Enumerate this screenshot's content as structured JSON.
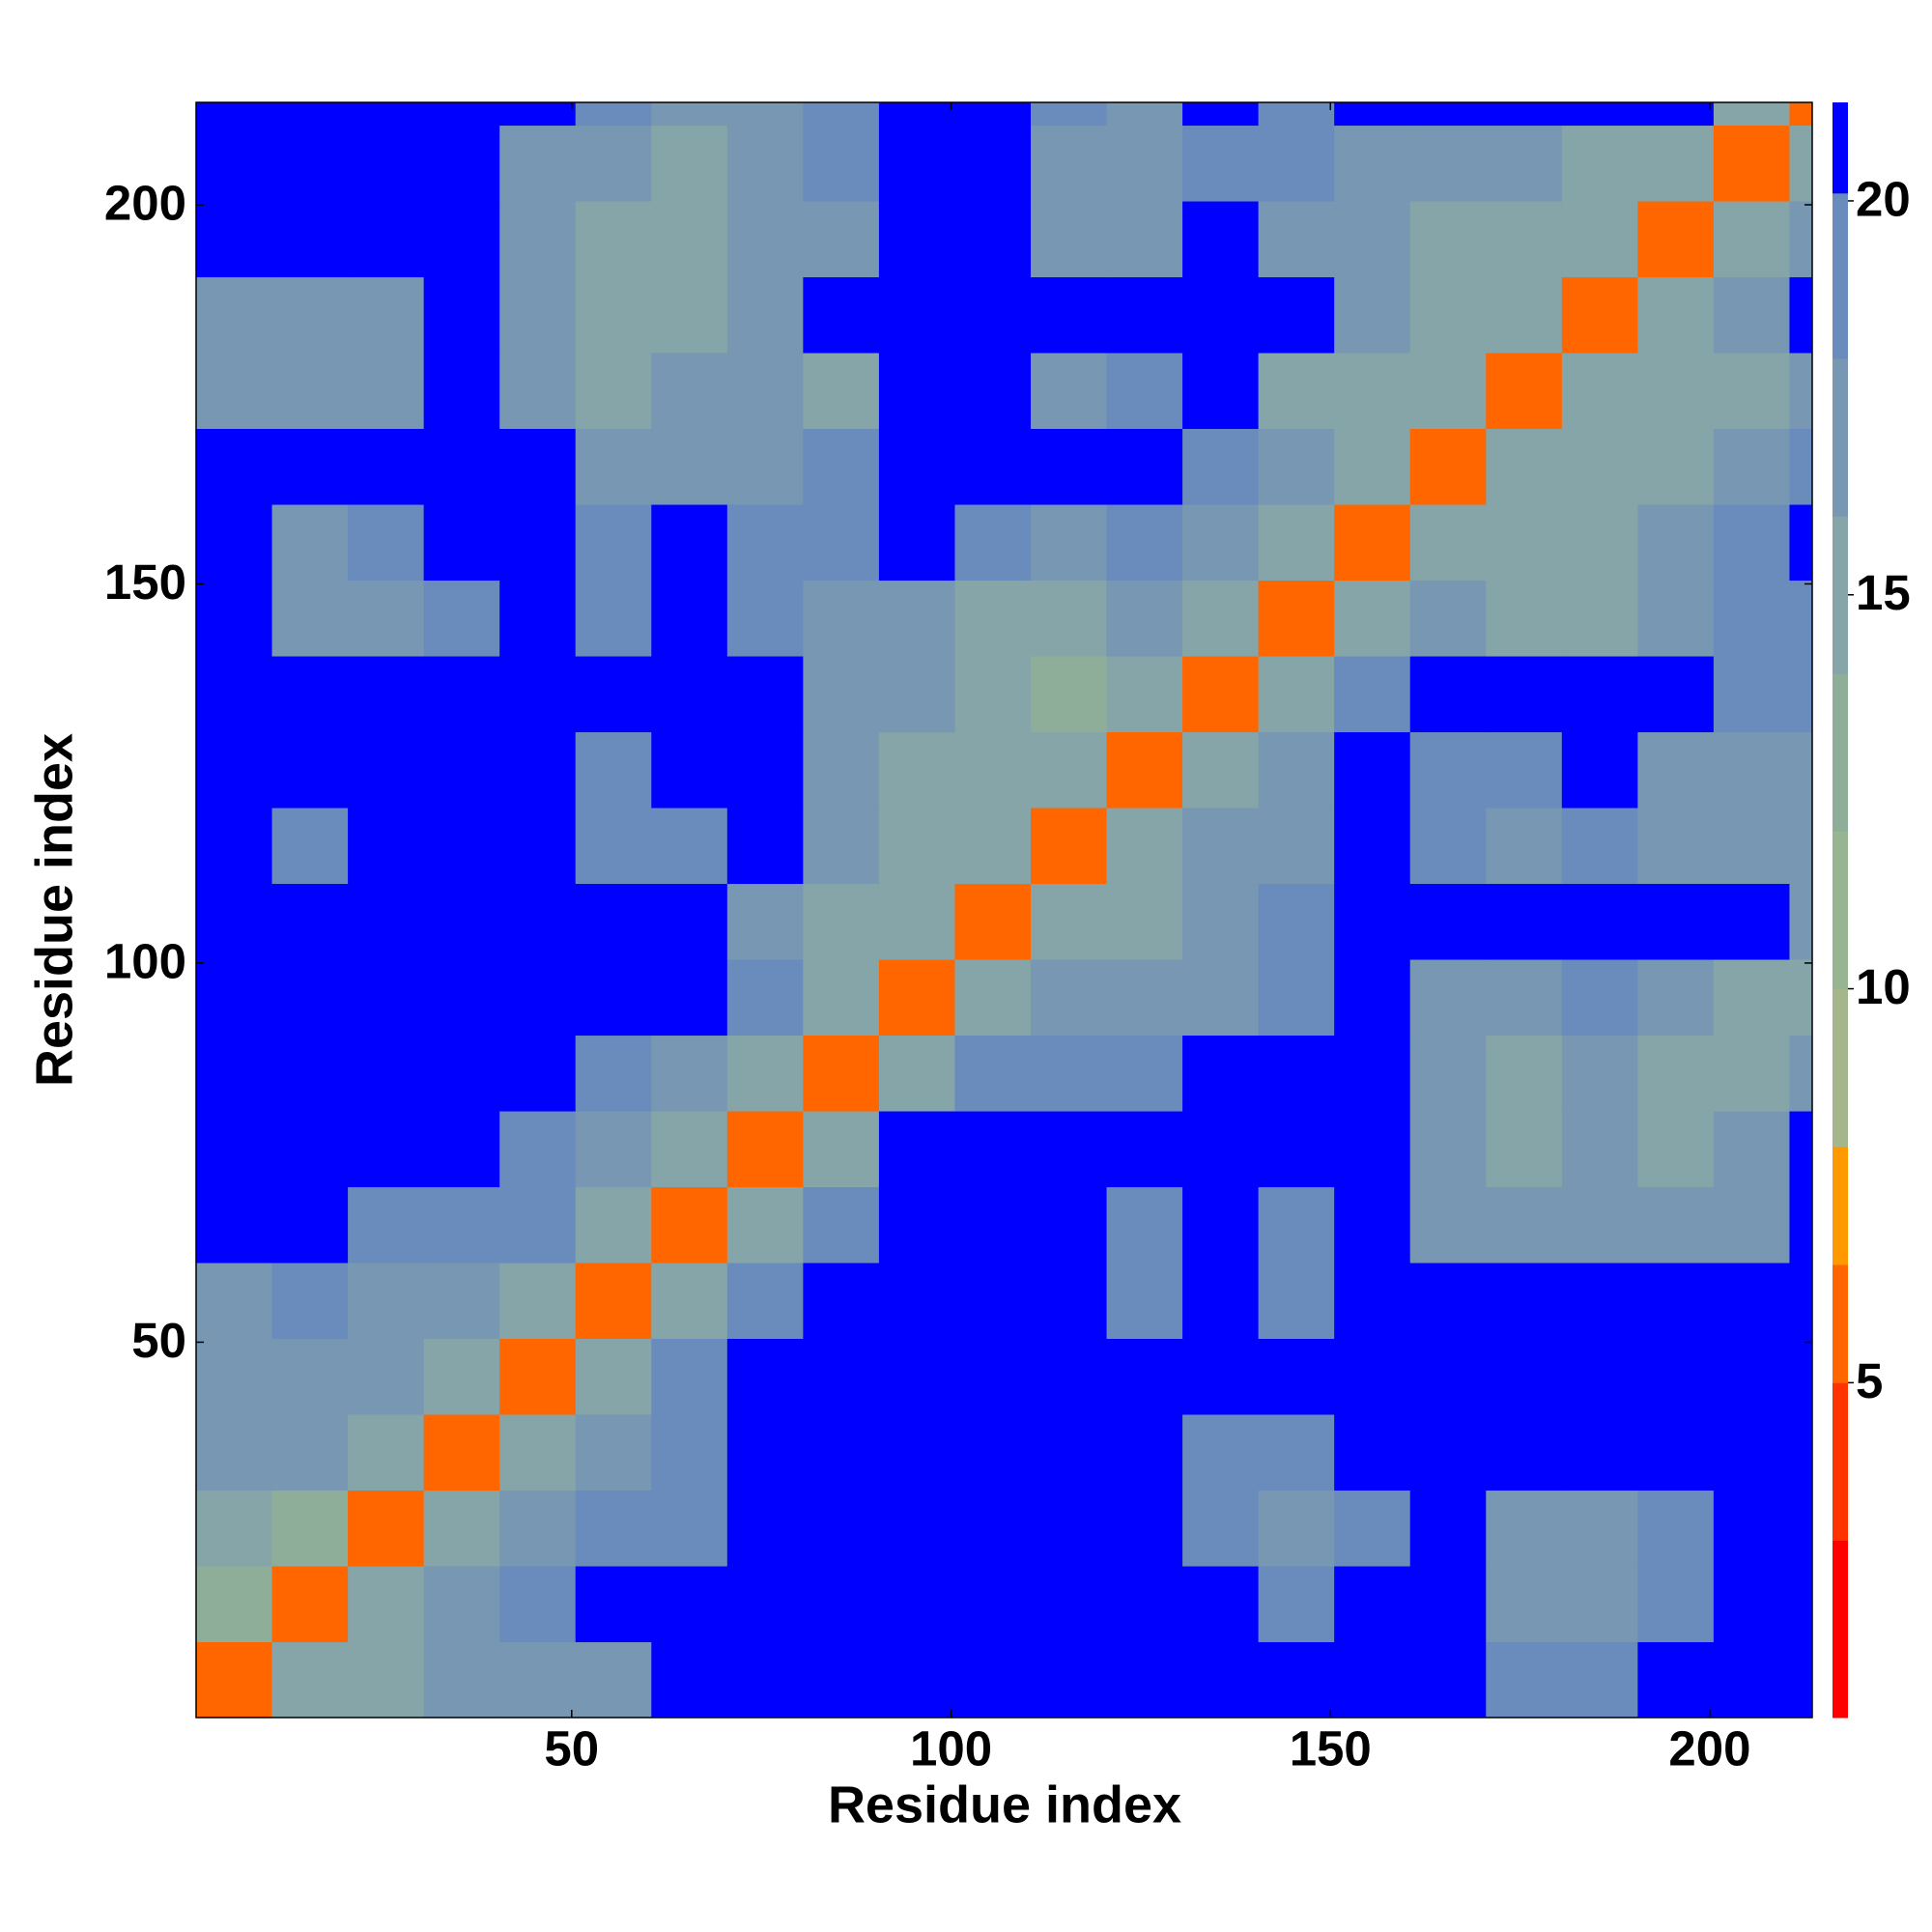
{
  "chart_data": {
    "type": "heatmap",
    "xlabel": "Residue index",
    "ylabel": "Residue index",
    "x_edges": [
      0.5,
      10.5,
      20.5,
      30.5,
      40.5,
      50.5,
      60.5,
      70.5,
      80.5,
      90.5,
      100.5,
      110.5,
      120.5,
      130.5,
      140.5,
      150.5,
      160.5,
      170.5,
      180.5,
      190.5,
      200.5,
      210.5,
      213.5
    ],
    "y_edges": [
      0.5,
      10.5,
      20.5,
      30.5,
      40.5,
      50.5,
      60.5,
      70.5,
      80.5,
      90.5,
      100.5,
      110.5,
      120.5,
      130.5,
      140.5,
      150.5,
      160.5,
      170.5,
      180.5,
      190.5,
      200.5,
      210.5,
      213.5
    ],
    "z": [
      [
        6,
        14,
        15,
        16,
        17,
        17,
        21,
        21,
        21,
        21,
        21,
        21,
        21,
        21,
        21,
        21,
        21,
        19,
        19,
        21,
        21,
        21
      ],
      [
        13,
        6,
        14,
        16,
        19,
        21,
        21,
        21,
        21,
        21,
        21,
        21,
        21,
        21,
        19,
        21,
        21,
        17,
        17,
        19,
        21,
        21
      ],
      [
        14,
        13,
        6,
        14,
        17,
        18,
        19,
        21,
        21,
        21,
        21,
        21,
        21,
        18,
        17,
        18,
        21,
        17,
        17,
        19,
        21,
        21
      ],
      [
        16,
        17,
        14,
        6,
        14,
        17,
        19,
        21,
        21,
        21,
        21,
        21,
        21,
        19,
        18,
        21,
        21,
        21,
        21,
        21,
        21,
        21
      ],
      [
        16,
        17,
        16,
        14,
        6,
        14,
        18,
        21,
        21,
        21,
        21,
        21,
        21,
        21,
        21,
        21,
        21,
        21,
        21,
        21,
        21,
        21
      ],
      [
        17,
        19,
        17,
        16,
        14,
        6,
        14,
        18,
        21,
        21,
        21,
        21,
        19,
        21,
        19,
        21,
        21,
        21,
        21,
        21,
        21,
        21
      ],
      [
        21,
        21,
        19,
        19,
        18,
        14,
        6,
        14,
        19,
        21,
        21,
        21,
        19,
        21,
        19,
        21,
        17,
        16,
        17,
        16,
        17,
        21
      ],
      [
        21,
        21,
        21,
        21,
        19,
        17,
        14,
        6,
        15,
        21,
        21,
        21,
        21,
        21,
        21,
        21,
        16,
        15,
        16,
        15,
        16,
        21
      ],
      [
        21,
        21,
        21,
        21,
        21,
        18,
        17,
        14,
        6,
        15,
        19,
        18,
        19,
        21,
        21,
        21,
        16,
        15,
        17,
        15,
        15,
        16
      ],
      [
        21,
        21,
        21,
        21,
        21,
        21,
        21,
        18,
        14,
        6,
        14,
        16,
        17,
        17,
        18,
        21,
        17,
        16,
        19,
        16,
        15,
        15
      ],
      [
        21,
        21,
        21,
        21,
        21,
        21,
        21,
        17,
        15,
        14,
        6,
        14,
        15,
        16,
        19,
        21,
        21,
        21,
        21,
        21,
        21,
        17
      ],
      [
        21,
        19,
        21,
        21,
        21,
        18,
        19,
        21,
        16,
        15,
        14,
        6,
        14,
        16,
        17,
        21,
        18,
        17,
        19,
        17,
        16,
        17
      ],
      [
        21,
        21,
        21,
        21,
        21,
        19,
        21,
        21,
        16,
        15,
        14,
        14,
        6,
        14,
        17,
        21,
        19,
        18,
        21,
        17,
        16,
        16
      ],
      [
        21,
        21,
        21,
        21,
        21,
        21,
        21,
        21,
        17,
        16,
        14,
        13,
        14,
        6,
        15,
        18,
        21,
        21,
        21,
        21,
        18,
        18
      ],
      [
        21,
        17,
        17,
        19,
        21,
        19,
        21,
        19,
        17,
        16,
        15,
        15,
        16,
        14,
        6,
        14,
        17,
        14,
        15,
        17,
        18,
        19
      ],
      [
        21,
        17,
        18,
        21,
        21,
        19,
        21,
        19,
        19,
        21,
        19,
        17,
        18,
        17,
        14,
        6,
        14,
        15,
        15,
        16,
        19,
        21
      ],
      [
        21,
        21,
        21,
        21,
        21,
        17,
        16,
        17,
        18,
        21,
        21,
        21,
        21,
        18,
        16,
        14,
        6,
        14,
        14,
        15,
        16,
        19
      ],
      [
        17,
        16,
        17,
        21,
        17,
        15,
        16,
        16,
        15,
        21,
        21,
        17,
        18,
        21,
        15,
        15,
        14,
        6,
        14,
        14,
        15,
        17
      ],
      [
        17,
        16,
        17,
        21,
        16,
        15,
        15,
        16,
        21,
        21,
        21,
        21,
        21,
        21,
        21,
        16,
        14,
        14,
        6,
        14,
        16,
        21
      ],
      [
        21,
        21,
        21,
        21,
        16,
        15,
        15,
        16,
        17,
        21,
        21,
        17,
        17,
        21,
        17,
        17,
        14,
        14,
        14,
        6,
        14,
        17
      ],
      [
        21,
        21,
        21,
        21,
        17,
        16,
        15,
        16,
        18,
        21,
        21,
        17,
        17,
        19,
        19,
        17,
        16,
        17,
        15,
        14,
        6,
        14
      ],
      [
        21,
        21,
        21,
        21,
        21,
        19,
        17,
        17,
        19,
        21,
        21,
        18,
        17,
        21,
        19,
        21,
        21,
        21,
        21,
        21,
        14,
        6
      ]
    ],
    "xlim": [
      0.5,
      213.5
    ],
    "ylim": [
      0.5,
      213.5
    ],
    "xticks": [
      50,
      100,
      150,
      200
    ],
    "yticks": [
      50,
      100,
      150,
      200
    ],
    "colorbar": {
      "zlim": [
        0.75,
        21.25
      ],
      "zticks": [
        5,
        10,
        15,
        20
      ],
      "colorscale": [
        [
          0.75,
          "#ff0000"
        ],
        [
          3,
          "#ff3300"
        ],
        [
          5,
          "#ff6600"
        ],
        [
          6.5,
          "#ff9900"
        ],
        [
          8,
          "#a6b68c"
        ],
        [
          10,
          "#98b592"
        ],
        [
          12,
          "#8fae9a"
        ],
        [
          14,
          "#86a5a8"
        ],
        [
          16,
          "#7797b3"
        ],
        [
          18,
          "#6a8cbc"
        ],
        [
          20.1,
          "#0000ff"
        ]
      ]
    }
  }
}
